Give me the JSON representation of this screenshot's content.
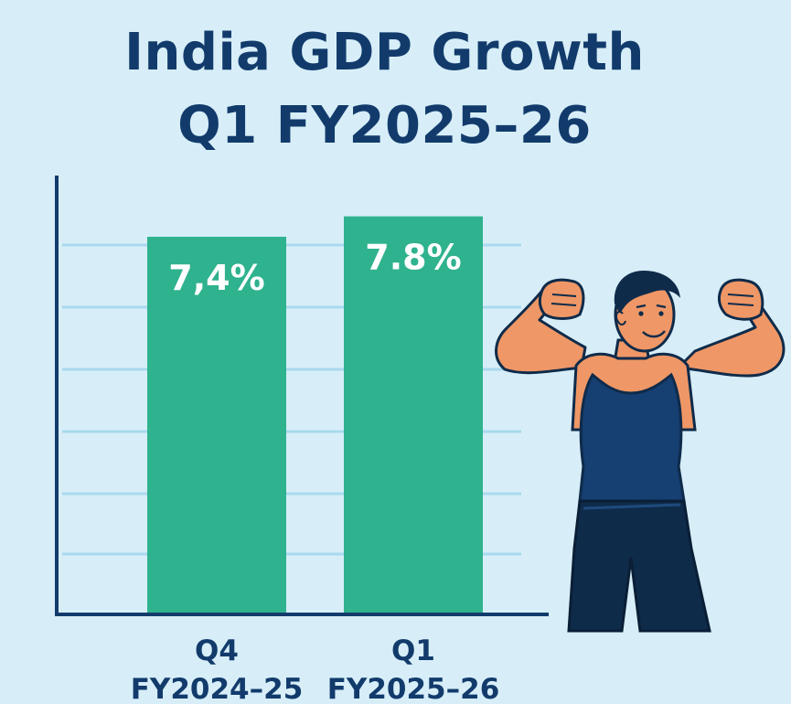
{
  "chart_data": {
    "type": "bar",
    "title": [
      "India GDP Growth",
      "Q1 FY2025–26"
    ],
    "categories": [
      [
        "Q4",
        "FY2024–25"
      ],
      [
        "Q1",
        "FY2025–26"
      ]
    ],
    "values": [
      7.4,
      7.8
    ],
    "value_labels": [
      "7,4%",
      "7.8%"
    ],
    "xlabel": "",
    "ylabel": "",
    "ylim": [
      0,
      8.6
    ],
    "grid": true,
    "legend": "none"
  },
  "colors": {
    "background": "#d7eef8",
    "bar": "#2fb28e",
    "grid": "#a9d9ee",
    "axis": "#123b6c",
    "text": "#123b6c",
    "bar_label": "#ffffff"
  },
  "illustration": "muscular-man-flexing"
}
